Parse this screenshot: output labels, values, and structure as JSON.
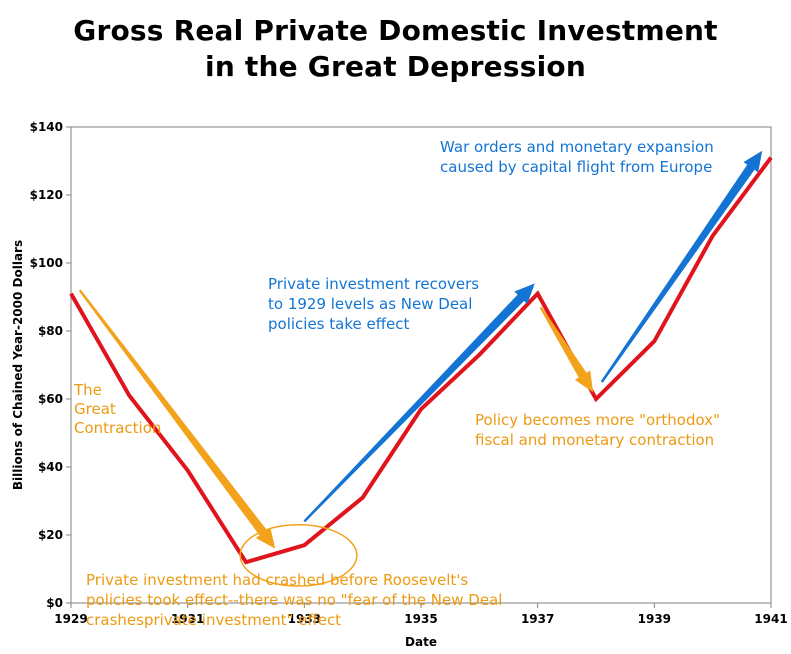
{
  "chart_data": {
    "type": "line",
    "title_lines": [
      "Gross Real Private Domestic Investment",
      "in the Great Depression"
    ],
    "xlabel": "Date",
    "ylabel": "Billions of Chained Year-2000 Dollars",
    "x_tick_labels": [
      "1929",
      "1931",
      "1933",
      "1935",
      "1937",
      "1939",
      "1941"
    ],
    "x_ticks": [
      1929,
      1931,
      1933,
      1935,
      1937,
      1939,
      1941
    ],
    "y_tick_labels": [
      "$0",
      "$20",
      "$40",
      "$60",
      "$80",
      "$100",
      "$120",
      "$140"
    ],
    "y_ticks": [
      0,
      20,
      40,
      60,
      80,
      100,
      120,
      140
    ],
    "xlim": [
      1929,
      1941
    ],
    "ylim": [
      0,
      140
    ],
    "grid": false,
    "series": [
      {
        "color": "#e0141c",
        "x": [
          1929,
          1930,
          1931,
          1932,
          1933,
          1934,
          1935,
          1936,
          1937,
          1938,
          1939,
          1940,
          1941
        ],
        "values": [
          91,
          61,
          39,
          12,
          17,
          31,
          57,
          73,
          91,
          60,
          77,
          108,
          131
        ]
      }
    ],
    "annotations": {
      "war": [
        "War orders and monetary expansion",
        "caused by capital flight from Europe"
      ],
      "recovery": [
        "Private investment recovers",
        "to 1929 levels as New Deal",
        "policies take effect"
      ],
      "contraction": [
        "The",
        "Great",
        "Contraction"
      ],
      "orthodox": [
        "Policy becomes more \"orthodox\"",
        "fiscal and monetary contraction"
      ],
      "crashed": [
        "Private investment had crashed before Roosevelt's",
        "policies took effect--there was no \"fear of the New Deal",
        "crashesprivate investment\" effect"
      ]
    },
    "arrows": {
      "blue": [
        {
          "from": [
            1933.0,
            24
          ],
          "to": [
            1936.95,
            94
          ]
        },
        {
          "from": [
            1938.1,
            65
          ],
          "to": [
            1940.85,
            133
          ]
        }
      ],
      "orange": [
        {
          "from": [
            1929.15,
            92
          ],
          "to": [
            1932.5,
            16
          ]
        },
        {
          "from": [
            1937.05,
            87
          ],
          "to": [
            1937.95,
            62
          ]
        }
      ]
    },
    "highlight_ellipse": {
      "center": [
        1932.9,
        14
      ],
      "radius_x": 1.0,
      "radius_y": 9
    }
  },
  "colors": {
    "line": "#e0141c",
    "blue_arrow": "#1474d4",
    "orange_arrow": "#f3a21b",
    "axis": "#808080"
  }
}
